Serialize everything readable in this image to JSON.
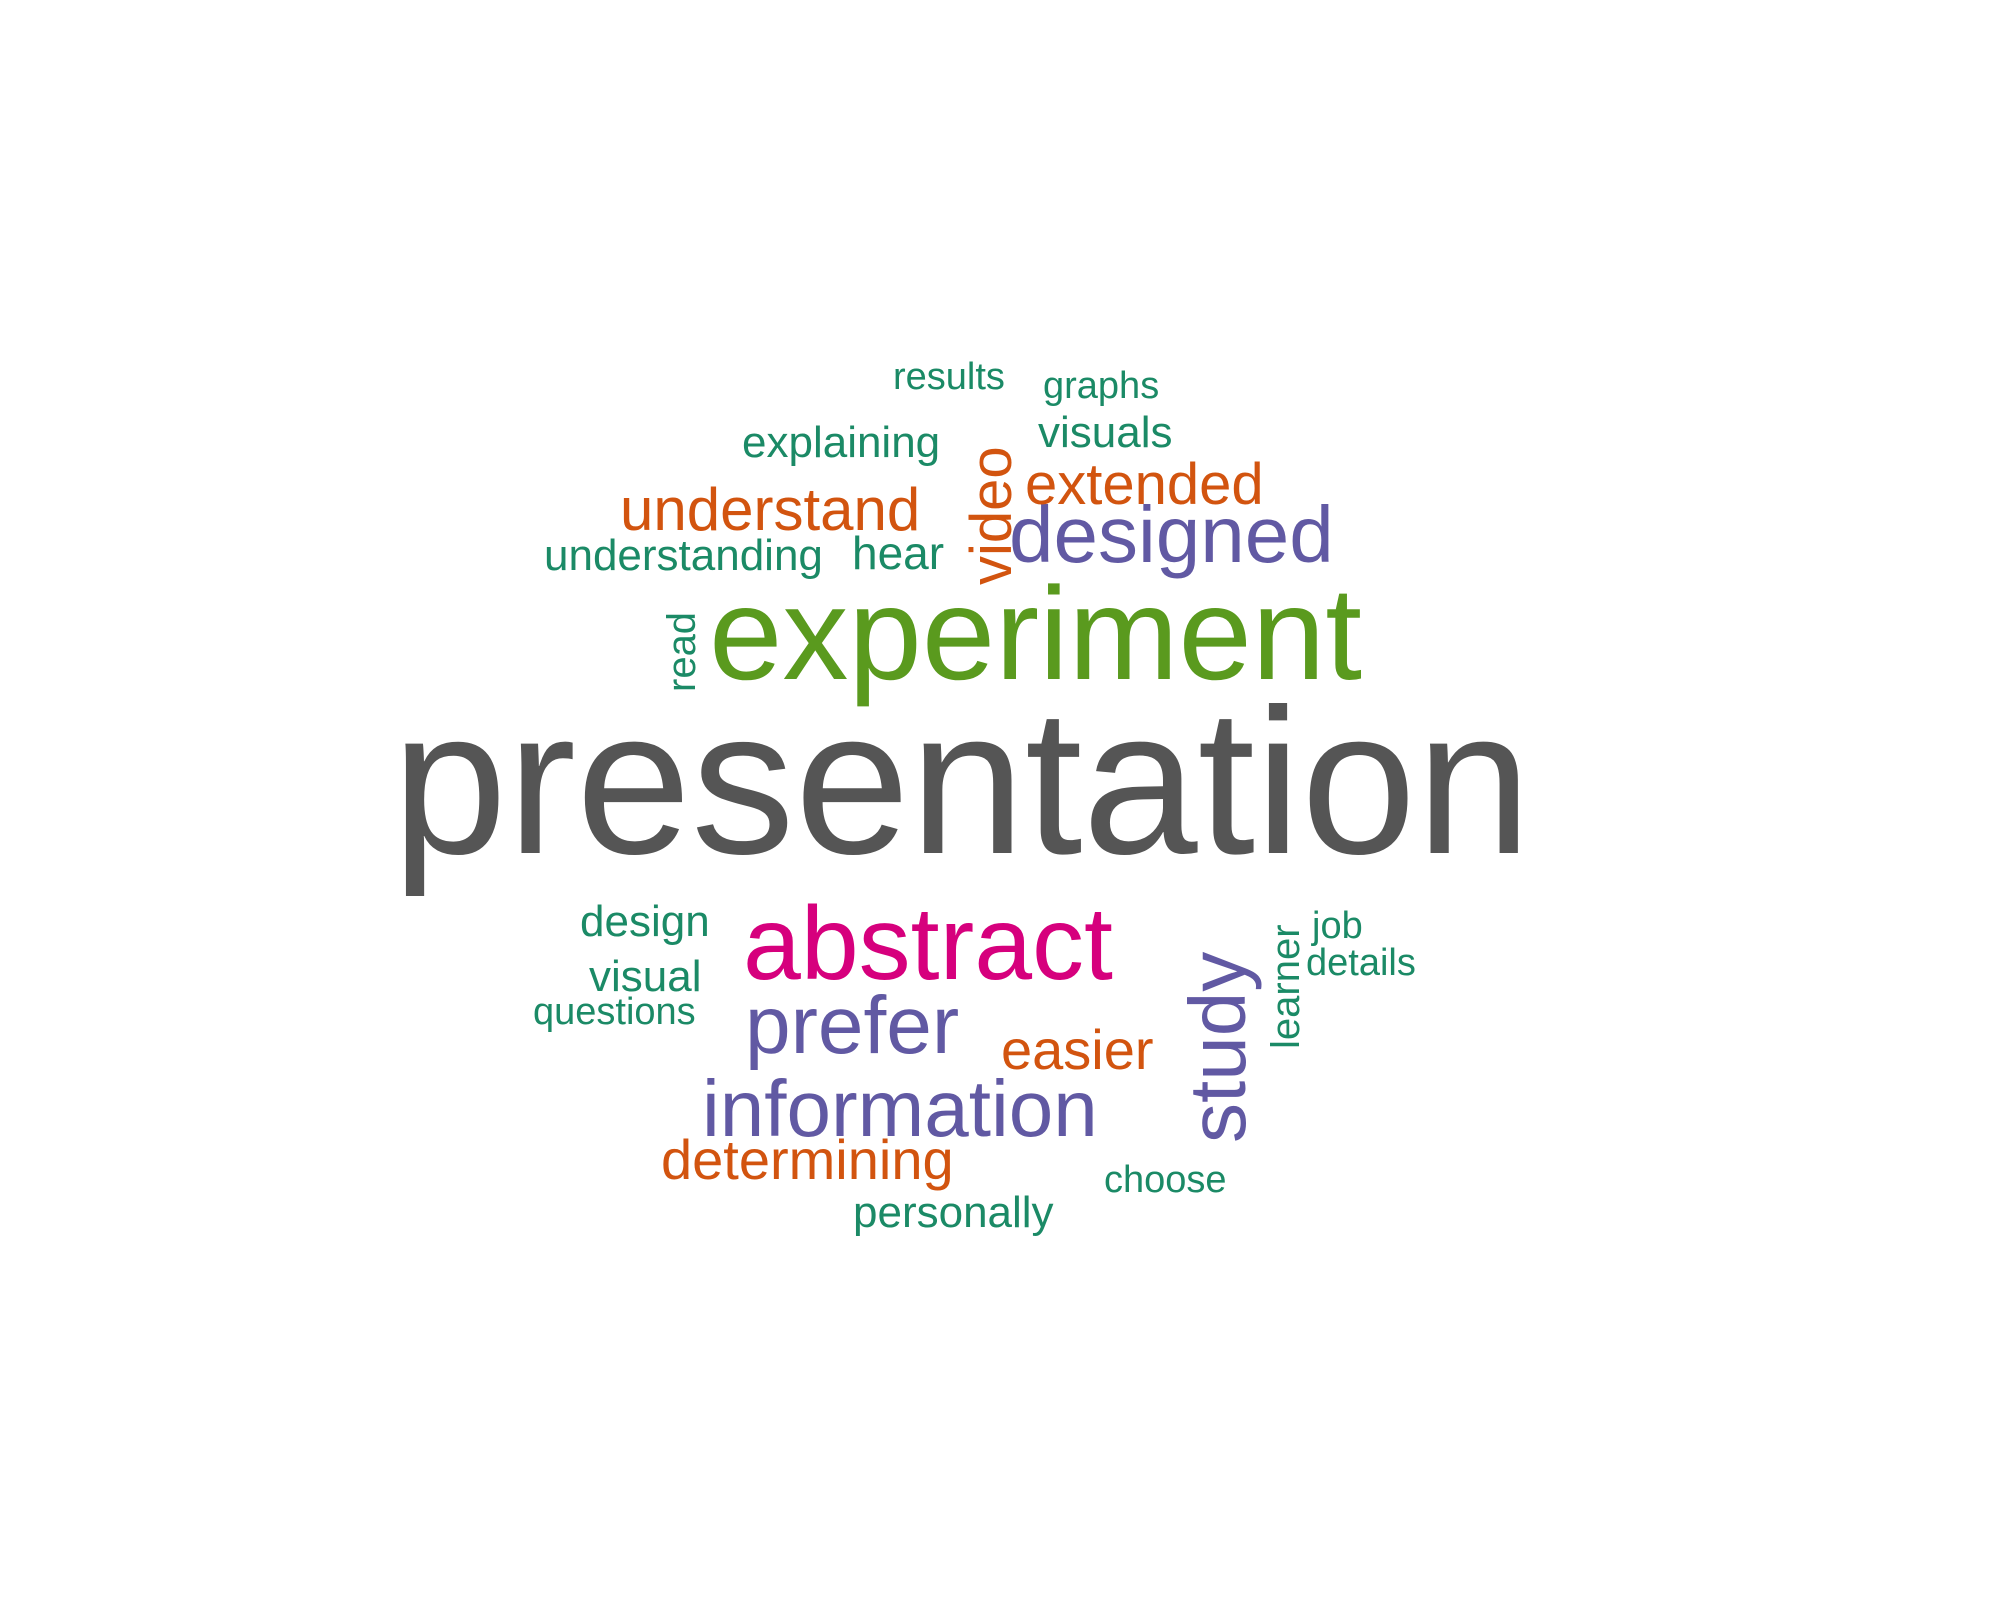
{
  "colors": {
    "dark_gray": "#555555",
    "green": "#5a9a1e",
    "magenta": "#d6007d",
    "purple": "#6159a3",
    "orange": "#d2540f",
    "teal": "#1b8a66",
    "background": "#ffffff"
  },
  "words": {
    "presentation": "presentation",
    "experiment": "experiment",
    "abstract": "abstract",
    "designed": "designed",
    "study": "study",
    "prefer": "prefer",
    "information": "information",
    "understand": "understand",
    "extended": "extended",
    "video": "video",
    "easier": "easier",
    "determining": "determining",
    "results": "results",
    "graphs": "graphs",
    "explaining": "explaining",
    "visuals": "visuals",
    "understanding": "understanding",
    "hear": "hear",
    "read": "read",
    "design": "design",
    "visual": "visual",
    "questions": "questions",
    "learner": "learner",
    "job": "job",
    "details": "details",
    "choose": "choose",
    "personally": "personally"
  }
}
